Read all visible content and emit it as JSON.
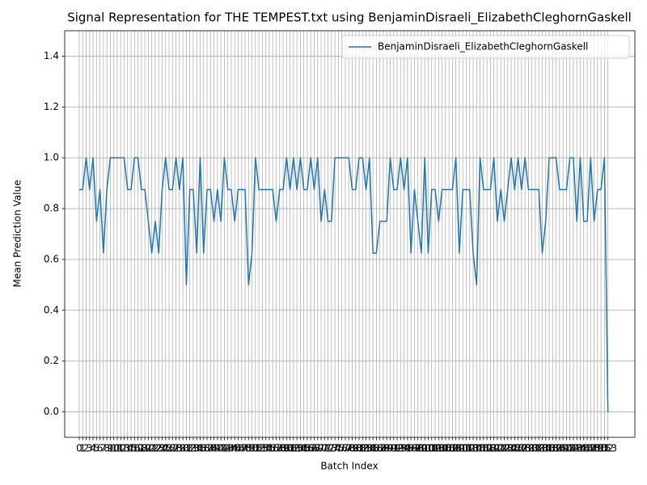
{
  "chart_data": {
    "type": "line",
    "title": "Signal Representation for THE TEMPEST.txt using BenjaminDisraeli_ElizabethCleghornGaskell",
    "x_label": "Batch Index",
    "y_label": "Mean Prediction Value",
    "x": [
      0,
      1,
      2,
      3,
      4,
      5,
      6,
      7,
      8,
      9,
      10,
      11,
      12,
      13,
      14,
      15,
      16,
      17,
      18,
      19,
      20,
      21,
      22,
      23,
      24,
      25,
      26,
      27,
      28,
      29,
      30,
      31,
      32,
      33,
      34,
      35,
      36,
      37,
      38,
      39,
      40,
      41,
      42,
      43,
      44,
      45,
      46,
      47,
      48,
      49,
      50,
      51,
      52,
      53,
      54,
      55,
      56,
      57,
      58,
      59,
      60,
      61,
      62,
      63,
      64,
      65,
      66,
      67,
      68,
      69,
      70,
      71,
      72,
      73,
      74,
      75,
      76,
      77,
      78,
      79,
      80,
      81,
      82,
      83,
      84,
      85,
      86,
      87,
      88,
      89,
      90,
      91,
      92,
      93,
      94,
      95,
      96,
      97,
      98,
      99,
      100,
      101,
      102,
      103,
      104,
      105,
      106,
      107,
      108,
      109,
      110,
      111,
      112,
      113,
      114,
      115,
      116,
      117,
      118,
      119,
      120,
      121,
      122,
      123,
      124,
      125,
      126,
      127,
      128,
      129,
      130,
      131,
      132,
      133,
      134,
      135,
      136,
      137,
      138,
      139,
      140,
      141,
      142,
      143,
      144,
      145,
      146,
      147,
      148,
      149,
      150,
      151,
      152,
      153
    ],
    "series": [
      {
        "name": "BenjaminDisraeli_ElizabethCleghornGaskell",
        "color": "#1f77b4",
        "values": [
          0.875,
          0.875,
          1,
          0.875,
          1,
          0.75,
          0.875,
          0.625,
          0.875,
          1,
          1,
          1,
          1,
          1,
          0.875,
          0.875,
          1,
          1,
          0.875,
          0.875,
          0.75,
          0.625,
          0.75,
          0.625,
          0.875,
          1,
          0.875,
          0.875,
          1,
          0.875,
          1,
          0.5,
          0.875,
          0.875,
          0.625,
          1,
          0.625,
          0.875,
          0.875,
          0.75,
          0.875,
          0.75,
          1,
          0.875,
          0.875,
          0.75,
          0.875,
          0.875,
          0.875,
          0.5,
          0.625,
          1,
          0.875,
          0.875,
          0.875,
          0.875,
          0.875,
          0.75,
          0.875,
          0.875,
          1,
          0.875,
          1,
          0.875,
          1,
          0.875,
          0.875,
          1,
          0.875,
          1,
          0.75,
          0.875,
          0.75,
          0.75,
          1,
          1,
          1,
          1,
          1,
          0.875,
          0.875,
          1,
          1,
          0.875,
          1,
          0.625,
          0.625,
          0.75,
          0.75,
          0.75,
          1,
          0.875,
          0.875,
          1,
          0.875,
          1,
          0.625,
          0.875,
          0.75,
          0.625,
          1,
          0.625,
          0.875,
          0.875,
          0.75,
          0.875,
          0.875,
          0.875,
          0.875,
          1,
          0.625,
          0.875,
          0.875,
          0.875,
          0.625,
          0.5,
          1,
          0.875,
          0.875,
          0.875,
          1,
          0.75,
          0.875,
          0.75,
          0.875,
          1,
          0.875,
          1,
          0.875,
          1,
          0.875,
          0.875,
          0.875,
          0.875,
          0.625,
          0.75,
          1,
          1,
          1,
          0.875,
          0.875,
          0.875,
          1,
          1,
          0.75,
          1,
          0.75,
          0.75,
          1,
          0.75,
          0.875,
          0.875,
          1,
          0
        ]
      }
    ],
    "xlim": [
      -4.2,
      160.8
    ],
    "ylim": [
      -0.1,
      1.5
    ],
    "xticks": [
      0,
      1,
      2,
      3,
      4,
      5,
      6,
      7,
      8,
      9,
      10,
      11,
      12,
      13,
      14,
      15,
      16,
      17,
      18,
      19,
      20,
      21,
      22,
      23,
      24,
      25,
      26,
      27,
      28,
      29,
      30,
      31,
      32,
      33,
      34,
      35,
      36,
      37,
      38,
      39,
      40,
      41,
      42,
      43,
      44,
      45,
      46,
      47,
      48,
      49,
      50,
      51,
      52,
      53,
      54,
      55,
      56,
      57,
      58,
      59,
      60,
      61,
      62,
      63,
      64,
      65,
      66,
      67,
      68,
      69,
      70,
      71,
      72,
      73,
      74,
      75,
      76,
      77,
      78,
      79,
      80,
      81,
      82,
      83,
      84,
      85,
      86,
      87,
      88,
      89,
      90,
      91,
      92,
      93,
      94,
      95,
      96,
      97,
      98,
      99,
      100,
      101,
      102,
      103,
      104,
      105,
      106,
      107,
      108,
      109,
      110,
      111,
      112,
      113,
      114,
      115,
      116,
      117,
      118,
      119,
      120,
      121,
      122,
      123,
      124,
      125,
      126,
      127,
      128,
      129,
      130,
      131,
      132,
      133,
      134,
      135,
      136,
      137,
      138,
      139,
      140,
      141,
      142,
      143,
      144,
      145,
      146,
      147,
      148,
      149,
      150,
      151,
      152,
      153
    ],
    "yticks": [
      {
        "value": 0,
        "label": "0.0"
      },
      {
        "value": 0.2,
        "label": "0.2"
      },
      {
        "value": 0.4,
        "label": "0.4"
      },
      {
        "value": 0.6,
        "label": "0.6"
      },
      {
        "value": 0.8,
        "label": "0.8"
      },
      {
        "value": 1,
        "label": "1.0"
      },
      {
        "value": 1.2,
        "label": "1.2"
      },
      {
        "value": 1.4,
        "label": "1.4"
      }
    ],
    "grid": true,
    "legend": "upper right"
  }
}
